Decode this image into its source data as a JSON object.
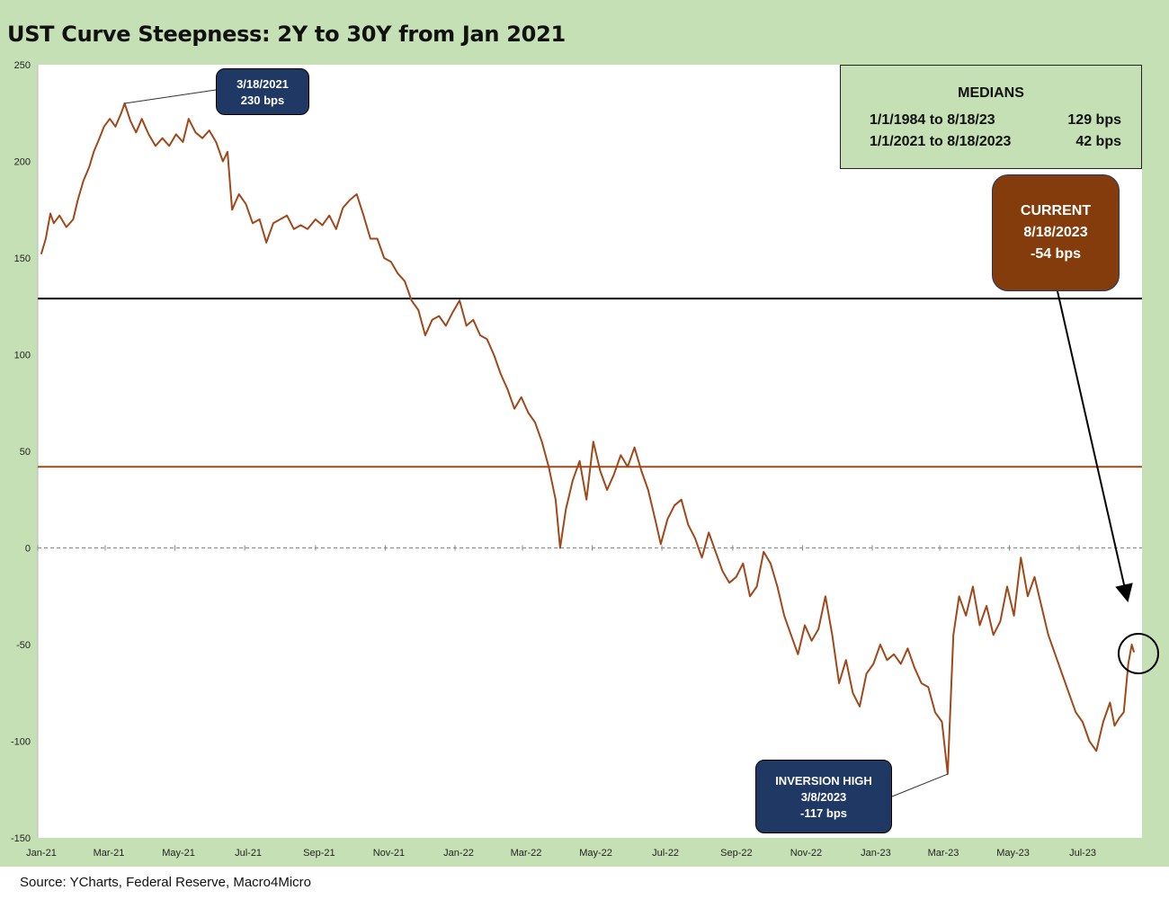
{
  "title": "UST Curve Steepness: 2Y to 30Y from Jan 2021",
  "source": "Source: YCharts, Federal Reserve, Macro4Micro",
  "medians_box": {
    "heading": "MEDIANS",
    "rows": [
      {
        "label": "1/1/1984 to 8/18/23",
        "value": "129 bps"
      },
      {
        "label": "1/1/2021 to 8/18/2023",
        "value": "42 bps"
      }
    ]
  },
  "current_box": {
    "line1": "CURRENT",
    "line2": "8/18/2023",
    "line3": "-54 bps"
  },
  "peak_callout": {
    "date": "3/18/2021",
    "value": "230 bps"
  },
  "trough_callout": {
    "line1": "INVERSION HIGH",
    "date": "3/8/2023",
    "value": "-117 bps"
  },
  "colors": {
    "series": "#a0481a",
    "median_long": "#000000",
    "median_recent": "#a0481a",
    "frame": "#c5e0b4",
    "callout_dark": "#1f3864",
    "callout_current": "#843c0c"
  },
  "chart_data": {
    "type": "line",
    "title": "UST Curve Steepness: 2Y to 30Y from Jan 2021",
    "ylim": [
      -150,
      250
    ],
    "yticks": [
      -150,
      -100,
      -50,
      0,
      50,
      100,
      150,
      200,
      250
    ],
    "xlim": [
      "2021-01-01",
      "2023-08-25"
    ],
    "xtick_labels": [
      "Jan-21",
      "Mar-21",
      "May-21",
      "Jul-21",
      "Sep-21",
      "Nov-21",
      "Jan-22",
      "Mar-22",
      "May-22",
      "Jul-22",
      "Sep-22",
      "Nov-22",
      "Jan-23",
      "Mar-23",
      "May-23",
      "Jul-23"
    ],
    "xtick_dates": [
      "2021-01-01",
      "2021-03-01",
      "2021-05-01",
      "2021-07-01",
      "2021-09-01",
      "2021-11-01",
      "2022-01-01",
      "2022-03-01",
      "2022-05-01",
      "2022-07-01",
      "2022-09-01",
      "2022-11-01",
      "2023-01-01",
      "2023-03-01",
      "2023-05-01",
      "2023-07-01"
    ],
    "reference_lines": [
      {
        "y": 129,
        "style": "solid",
        "color": "#000000"
      },
      {
        "y": 42,
        "style": "solid",
        "color": "#a0481a"
      },
      {
        "y": 0,
        "style": "dashed",
        "color": "#888888"
      }
    ],
    "series": [
      {
        "points": [
          [
            "2021-01-04",
            152
          ],
          [
            "2021-01-08",
            160
          ],
          [
            "2021-01-12",
            173
          ],
          [
            "2021-01-15",
            168
          ],
          [
            "2021-01-20",
            172
          ],
          [
            "2021-01-26",
            166
          ],
          [
            "2021-02-01",
            170
          ],
          [
            "2021-02-05",
            180
          ],
          [
            "2021-02-10",
            190
          ],
          [
            "2021-02-15",
            197
          ],
          [
            "2021-02-19",
            205
          ],
          [
            "2021-02-24",
            212
          ],
          [
            "2021-02-28",
            218
          ],
          [
            "2021-03-05",
            222
          ],
          [
            "2021-03-10",
            218
          ],
          [
            "2021-03-15",
            225
          ],
          [
            "2021-03-18",
            230
          ],
          [
            "2021-03-23",
            221
          ],
          [
            "2021-03-28",
            215
          ],
          [
            "2021-04-02",
            222
          ],
          [
            "2021-04-08",
            214
          ],
          [
            "2021-04-14",
            208
          ],
          [
            "2021-04-20",
            212
          ],
          [
            "2021-04-26",
            208
          ],
          [
            "2021-05-02",
            214
          ],
          [
            "2021-05-08",
            210
          ],
          [
            "2021-05-13",
            222
          ],
          [
            "2021-05-19",
            215
          ],
          [
            "2021-05-25",
            212
          ],
          [
            "2021-05-31",
            216
          ],
          [
            "2021-06-06",
            210
          ],
          [
            "2021-06-12",
            200
          ],
          [
            "2021-06-16",
            205
          ],
          [
            "2021-06-20",
            175
          ],
          [
            "2021-06-26",
            183
          ],
          [
            "2021-07-02",
            178
          ],
          [
            "2021-07-08",
            168
          ],
          [
            "2021-07-14",
            170
          ],
          [
            "2021-07-20",
            158
          ],
          [
            "2021-07-26",
            168
          ],
          [
            "2021-08-01",
            170
          ],
          [
            "2021-08-07",
            172
          ],
          [
            "2021-08-13",
            165
          ],
          [
            "2021-08-19",
            167
          ],
          [
            "2021-08-25",
            165
          ],
          [
            "2021-09-01",
            170
          ],
          [
            "2021-09-07",
            167
          ],
          [
            "2021-09-13",
            172
          ],
          [
            "2021-09-19",
            165
          ],
          [
            "2021-09-25",
            176
          ],
          [
            "2021-10-01",
            180
          ],
          [
            "2021-10-07",
            183
          ],
          [
            "2021-10-13",
            172
          ],
          [
            "2021-10-19",
            160
          ],
          [
            "2021-10-25",
            160
          ],
          [
            "2021-10-31",
            150
          ],
          [
            "2021-11-06",
            148
          ],
          [
            "2021-11-12",
            142
          ],
          [
            "2021-11-18",
            138
          ],
          [
            "2021-11-24",
            128
          ],
          [
            "2021-11-30",
            123
          ],
          [
            "2021-12-06",
            110
          ],
          [
            "2021-12-12",
            118
          ],
          [
            "2021-12-18",
            120
          ],
          [
            "2021-12-24",
            115
          ],
          [
            "2021-12-30",
            122
          ],
          [
            "2022-01-05",
            128
          ],
          [
            "2022-01-11",
            115
          ],
          [
            "2022-01-17",
            118
          ],
          [
            "2022-01-23",
            110
          ],
          [
            "2022-01-29",
            108
          ],
          [
            "2022-02-04",
            100
          ],
          [
            "2022-02-10",
            90
          ],
          [
            "2022-02-16",
            82
          ],
          [
            "2022-02-22",
            72
          ],
          [
            "2022-02-28",
            78
          ],
          [
            "2022-03-06",
            70
          ],
          [
            "2022-03-12",
            65
          ],
          [
            "2022-03-18",
            55
          ],
          [
            "2022-03-24",
            42
          ],
          [
            "2022-03-30",
            25
          ],
          [
            "2022-04-03",
            0
          ],
          [
            "2022-04-08",
            20
          ],
          [
            "2022-04-14",
            35
          ],
          [
            "2022-04-20",
            45
          ],
          [
            "2022-04-26",
            25
          ],
          [
            "2022-05-02",
            55
          ],
          [
            "2022-05-08",
            40
          ],
          [
            "2022-05-14",
            30
          ],
          [
            "2022-05-20",
            38
          ],
          [
            "2022-05-26",
            48
          ],
          [
            "2022-06-01",
            42
          ],
          [
            "2022-06-07",
            52
          ],
          [
            "2022-06-13",
            40
          ],
          [
            "2022-06-19",
            30
          ],
          [
            "2022-06-25",
            15
          ],
          [
            "2022-06-30",
            2
          ],
          [
            "2022-07-06",
            15
          ],
          [
            "2022-07-12",
            22
          ],
          [
            "2022-07-18",
            25
          ],
          [
            "2022-07-24",
            12
          ],
          [
            "2022-07-30",
            5
          ],
          [
            "2022-08-05",
            -5
          ],
          [
            "2022-08-11",
            8
          ],
          [
            "2022-08-17",
            -2
          ],
          [
            "2022-08-23",
            -12
          ],
          [
            "2022-08-29",
            -18
          ],
          [
            "2022-09-04",
            -15
          ],
          [
            "2022-09-10",
            -8
          ],
          [
            "2022-09-16",
            -25
          ],
          [
            "2022-09-22",
            -20
          ],
          [
            "2022-09-28",
            -2
          ],
          [
            "2022-10-04",
            -8
          ],
          [
            "2022-10-10",
            -20
          ],
          [
            "2022-10-16",
            -35
          ],
          [
            "2022-10-22",
            -45
          ],
          [
            "2022-10-28",
            -55
          ],
          [
            "2022-11-03",
            -40
          ],
          [
            "2022-11-09",
            -48
          ],
          [
            "2022-11-15",
            -42
          ],
          [
            "2022-11-21",
            -25
          ],
          [
            "2022-11-27",
            -45
          ],
          [
            "2022-12-03",
            -70
          ],
          [
            "2022-12-09",
            -58
          ],
          [
            "2022-12-15",
            -75
          ],
          [
            "2022-12-21",
            -82
          ],
          [
            "2022-12-27",
            -65
          ],
          [
            "2023-01-02",
            -60
          ],
          [
            "2023-01-08",
            -50
          ],
          [
            "2023-01-14",
            -58
          ],
          [
            "2023-01-20",
            -55
          ],
          [
            "2023-01-26",
            -60
          ],
          [
            "2023-02-01",
            -52
          ],
          [
            "2023-02-07",
            -62
          ],
          [
            "2023-02-13",
            -70
          ],
          [
            "2023-02-19",
            -72
          ],
          [
            "2023-02-25",
            -85
          ],
          [
            "2023-03-03",
            -90
          ],
          [
            "2023-03-08",
            -117
          ],
          [
            "2023-03-13",
            -45
          ],
          [
            "2023-03-18",
            -25
          ],
          [
            "2023-03-24",
            -35
          ],
          [
            "2023-03-30",
            -20
          ],
          [
            "2023-04-05",
            -40
          ],
          [
            "2023-04-11",
            -30
          ],
          [
            "2023-04-17",
            -45
          ],
          [
            "2023-04-23",
            -38
          ],
          [
            "2023-04-29",
            -20
          ],
          [
            "2023-05-05",
            -35
          ],
          [
            "2023-05-11",
            -5
          ],
          [
            "2023-05-17",
            -25
          ],
          [
            "2023-05-23",
            -15
          ],
          [
            "2023-05-29",
            -30
          ],
          [
            "2023-06-04",
            -45
          ],
          [
            "2023-06-10",
            -55
          ],
          [
            "2023-06-16",
            -65
          ],
          [
            "2023-06-22",
            -75
          ],
          [
            "2023-06-28",
            -85
          ],
          [
            "2023-07-04",
            -90
          ],
          [
            "2023-07-10",
            -100
          ],
          [
            "2023-07-16",
            -105
          ],
          [
            "2023-07-22",
            -90
          ],
          [
            "2023-07-28",
            -80
          ],
          [
            "2023-08-01",
            -92
          ],
          [
            "2023-08-05",
            -88
          ],
          [
            "2023-08-09",
            -85
          ],
          [
            "2023-08-13",
            -60
          ],
          [
            "2023-08-16",
            -50
          ],
          [
            "2023-08-18",
            -54
          ]
        ]
      }
    ]
  }
}
